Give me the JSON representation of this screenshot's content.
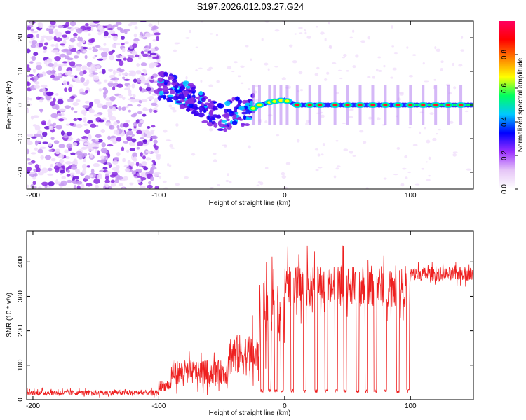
{
  "title": "S197.2026.012.03.27.G24",
  "chart_data": [
    {
      "type": "heatmap",
      "name": "spectrogram",
      "xlabel": "Height of straight line (km)",
      "ylabel": "Frequency (Hz)",
      "xlim": [
        -205,
        150
      ],
      "ylim": [
        -25,
        25
      ],
      "xticks": [
        -200,
        -100,
        0,
        100
      ],
      "yticks": [
        -20,
        -10,
        0,
        10,
        20
      ],
      "colorbar": {
        "label": "Normalized spectral amplitude",
        "range": [
          0,
          1
        ],
        "ticks": [
          "0.0",
          "0.2",
          "0.4",
          "0.6",
          "0.8"
        ],
        "colors": [
          "#ffffff",
          "#e6c6f7",
          "#9b30ff",
          "#0000ff",
          "#00c8ff",
          "#00ff60",
          "#ffff00",
          "#ff8000",
          "#ff0000",
          "#ff0060"
        ]
      },
      "noise_region_km": [
        -205,
        -100
      ],
      "ridge": {
        "x": [
          -100,
          -90,
          -80,
          -70,
          -60,
          -50,
          -40,
          -30,
          -20,
          -10,
          0,
          10,
          50,
          100,
          150
        ],
        "freq": [
          6,
          5,
          3,
          1,
          -2,
          -4,
          -2,
          -2,
          0,
          1,
          1.5,
          0,
          0,
          0,
          0
        ]
      },
      "peaks_km": [
        -25,
        -20,
        -12,
        -8,
        -3,
        2,
        10,
        20,
        28,
        40,
        50,
        60,
        70,
        80,
        90,
        100,
        110,
        120,
        130,
        140
      ]
    },
    {
      "type": "line",
      "name": "snr",
      "xlabel": "Height of straight line (km)",
      "ylabel": "SNR (10 * v/v)",
      "xlim": [
        -205,
        150
      ],
      "ylim": [
        0,
        490
      ],
      "xticks": [
        -200,
        -100,
        0,
        100
      ],
      "yticks": [
        0,
        100,
        200,
        300,
        400
      ],
      "color": "#ee2020",
      "segments": [
        {
          "x0": -205,
          "x1": -100,
          "level": 20,
          "amp": 15
        },
        {
          "x0": -100,
          "x1": -90,
          "level": 40,
          "amp": 30
        },
        {
          "x0": -90,
          "x1": -45,
          "level": 80,
          "amp": 70
        },
        {
          "x0": -45,
          "x1": -20,
          "level": 130,
          "amp": 120
        },
        {
          "x0": -20,
          "x1": 0,
          "level": 250,
          "amp": 170
        },
        {
          "x0": 0,
          "x1": 100,
          "level": 330,
          "amp": 120
        },
        {
          "x0": 100,
          "x1": 150,
          "level": 365,
          "amp": 40
        }
      ],
      "dropouts_km": [
        -18,
        -12,
        -7,
        -2,
        6,
        16,
        25,
        33,
        41,
        48,
        58,
        65,
        72,
        80,
        90,
        98
      ],
      "dropout_level": 20
    }
  ]
}
